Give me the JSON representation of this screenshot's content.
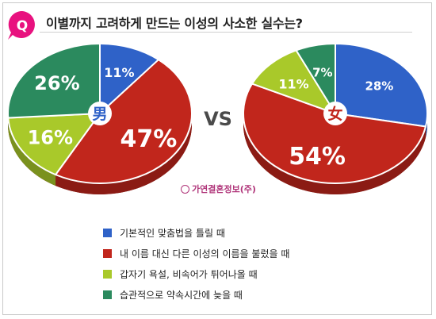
{
  "header": {
    "question_badge": "Q",
    "title": "이별까지 고려하게 만드는 이성의 사소한 실수는?"
  },
  "vs_label": "VS",
  "source_logo": "가연결혼정보(주)",
  "colors": {
    "blue": "#2f62c8",
    "red": "#c1261c",
    "green": "#a9c92a",
    "teal": "#2b8a5e",
    "badge": "#e8127f"
  },
  "legend": [
    {
      "label": "기본적인 맞춤법을 틀릴 때",
      "color": "#2f62c8"
    },
    {
      "label": "내 이름 대신 다른 이성의 이름을 불렀을 때",
      "color": "#c1261c"
    },
    {
      "label": "갑자기 욕설, 비속어가 튀어나올 때",
      "color": "#a9c92a"
    },
    {
      "label": "습관적으로 약속시간에 늦을 때",
      "color": "#2b8a5e"
    }
  ],
  "chart_data": [
    {
      "type": "pie",
      "center_label": "男",
      "categories": [
        "기본적인 맞춤법을 틀릴 때",
        "내 이름 대신 다른 이성의 이름을 불렀을 때",
        "갑자기 욕설, 비속어가 튀어나올 때",
        "습관적으로 약속시간에 늦을 때"
      ],
      "values": [
        11,
        47,
        16,
        26
      ],
      "labels": [
        "11%",
        "47%",
        "16%",
        "26%"
      ]
    },
    {
      "type": "pie",
      "center_label": "女",
      "categories": [
        "기본적인 맞춤법을 틀릴 때",
        "내 이름 대신 다른 이성의 이름을 불렀을 때",
        "갑자기 욕설, 비속어가 튀어나올 때",
        "습관적으로 약속시간에 늦을 때"
      ],
      "values": [
        28,
        54,
        11,
        7
      ],
      "labels": [
        "28%",
        "54%",
        "11%",
        "7%"
      ]
    }
  ]
}
